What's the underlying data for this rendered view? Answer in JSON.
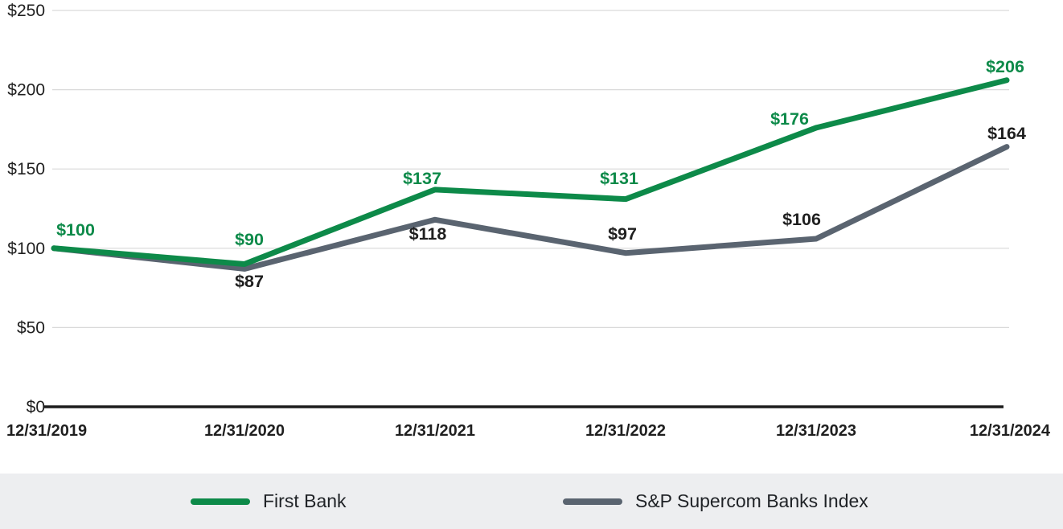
{
  "chart_data": {
    "type": "line",
    "categories": [
      "12/31/2019",
      "12/31/2020",
      "12/31/2021",
      "12/31/2022",
      "12/31/2023",
      "12/31/2024"
    ],
    "series": [
      {
        "name": "First Bank",
        "color": "#0D8A49",
        "values": [
          100,
          90,
          137,
          131,
          176,
          206
        ],
        "point_labels": [
          "$100",
          "$90",
          "$137",
          "$131",
          "$176",
          "$206"
        ]
      },
      {
        "name": "S&P Supercom Banks Index",
        "color": "#5A6470",
        "values": [
          100,
          87,
          118,
          97,
          106,
          164
        ],
        "point_labels": [
          "",
          "$87",
          "$118",
          "$97",
          "$106",
          "$164"
        ]
      }
    ],
    "y_axis": {
      "tick_labels": [
        "$0",
        "$50",
        "$100",
        "$150",
        "$200",
        "$250"
      ],
      "tick_values": [
        0,
        50,
        100,
        150,
        200,
        250
      ],
      "range": [
        0,
        250
      ],
      "currency_prefix": "$"
    },
    "x_axis": {
      "tick_labels": [
        "12/31/2019",
        "12/31/2020",
        "12/31/2021",
        "12/31/2022",
        "12/31/2023",
        "12/31/2024"
      ]
    },
    "grid": true,
    "legend_position": "bottom"
  },
  "legend": {
    "items": [
      {
        "label": "First Bank",
        "color": "#0D8A49"
      },
      {
        "label": "S&P Supercom Banks Index",
        "color": "#5A6470"
      }
    ]
  },
  "colors": {
    "first_bank_line": "#0D8A49",
    "index_line": "#5A6470",
    "index_label_text": "#1f1f1f",
    "axis_text": "#1f1f1f",
    "gridline": "#d9d9d9",
    "baseline": "#1c1c1c",
    "legend_band": "#edeef0",
    "background": "#ffffff"
  }
}
